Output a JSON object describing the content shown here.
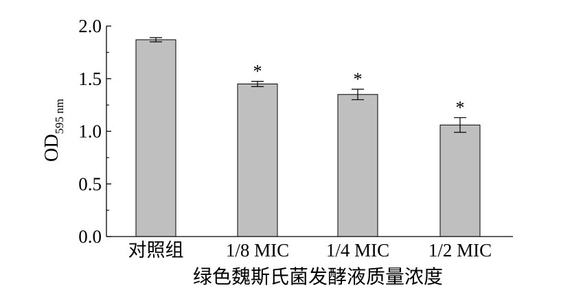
{
  "chart_data": {
    "type": "bar",
    "categories": [
      "对照组",
      "1/8 MIC",
      "1/4 MIC",
      "1/2 MIC"
    ],
    "values": [
      1.87,
      1.45,
      1.35,
      1.06
    ],
    "error": [
      0.02,
      0.025,
      0.05,
      0.07
    ],
    "significance": [
      "",
      "*",
      "*",
      "*"
    ],
    "xlabel": "绿色魏斯氏菌发酵液质量浓度",
    "ylabel": {
      "main": "OD",
      "sub": "595 nm"
    },
    "yticks": [
      "0.0",
      "0.5",
      "1.0",
      "1.5",
      "2.0"
    ],
    "ytick_values": [
      0,
      0.5,
      1.0,
      1.5,
      2.0
    ],
    "ylim": [
      0,
      2.0
    ],
    "grid": false,
    "colors": {
      "bar_fill": "#bfbfbf",
      "bar_stroke": "#000000",
      "axis": "#000000"
    }
  }
}
